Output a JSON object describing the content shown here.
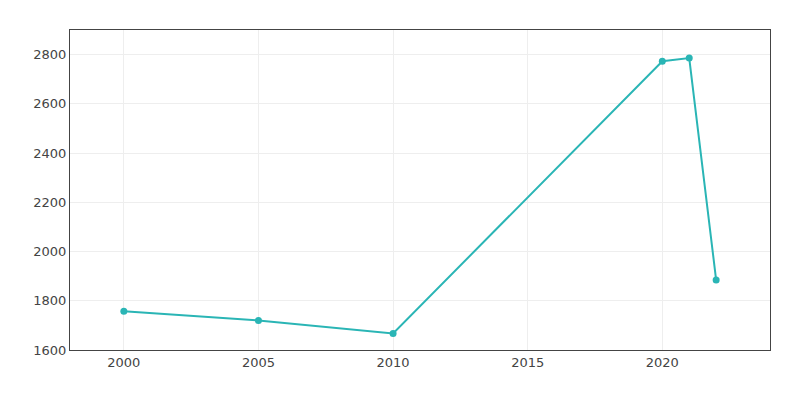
{
  "chart_data": {
    "type": "line",
    "x": [
      2000,
      2005,
      2010,
      2020,
      2021,
      2022
    ],
    "values": [
      1757,
      1720,
      1667,
      2773,
      2786,
      1884
    ],
    "color": "#2ab5b5",
    "marker": "circle",
    "xlim": [
      1998,
      2024
    ],
    "xticks": [
      2000,
      2005,
      2010,
      2015,
      2020
    ],
    "ylim": [
      1600,
      2900
    ],
    "yticks": [
      1600,
      1800,
      2000,
      2200,
      2400,
      2600,
      2800
    ],
    "grid": true
  }
}
